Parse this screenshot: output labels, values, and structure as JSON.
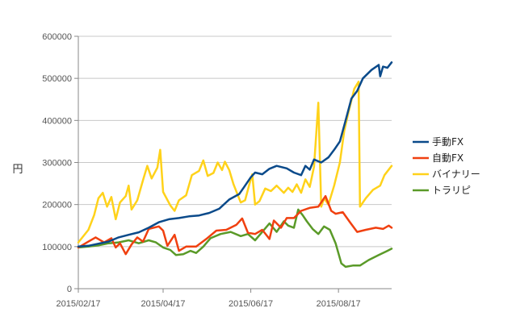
{
  "chart_data": {
    "type": "line",
    "title": "",
    "xlabel": "",
    "ylabel": "円",
    "ylim": [
      0,
      600000
    ],
    "yticks": [
      "0",
      "100000",
      "200000",
      "300000",
      "400000",
      "500000",
      "600000"
    ],
    "xlim": [
      "2015-02-17",
      "2015-09-23"
    ],
    "xticks": [
      {
        "date": "2015-02-17",
        "label": "2015/02/17"
      },
      {
        "date": "2015-04-17",
        "label": "2015/04/17"
      },
      {
        "date": "2015-06-17",
        "label": "2015/06/17"
      },
      {
        "date": "2015-08-17",
        "label": "2015/08/17"
      }
    ],
    "grid": "horizontal",
    "legend_position": "right",
    "series": [
      {
        "name": "手動FX",
        "color": "#0a4a8a",
        "points": [
          [
            "2015-02-17",
            100000
          ],
          [
            "2015-02-24",
            102000
          ],
          [
            "2015-03-03",
            107000
          ],
          [
            "2015-03-10",
            112000
          ],
          [
            "2015-03-17",
            122000
          ],
          [
            "2015-03-24",
            128000
          ],
          [
            "2015-03-31",
            134000
          ],
          [
            "2015-04-07",
            145000
          ],
          [
            "2015-04-14",
            158000
          ],
          [
            "2015-04-21",
            165000
          ],
          [
            "2015-04-28",
            168000
          ],
          [
            "2015-05-05",
            172000
          ],
          [
            "2015-05-12",
            174000
          ],
          [
            "2015-05-19",
            180000
          ],
          [
            "2015-05-26",
            190000
          ],
          [
            "2015-06-02",
            212000
          ],
          [
            "2015-06-09",
            225000
          ],
          [
            "2015-06-12",
            240000
          ],
          [
            "2015-06-17",
            265000
          ],
          [
            "2015-06-20",
            276000
          ],
          [
            "2015-06-25",
            272000
          ],
          [
            "2015-06-30",
            285000
          ],
          [
            "2015-07-05",
            292000
          ],
          [
            "2015-07-12",
            286000
          ],
          [
            "2015-07-17",
            276000
          ],
          [
            "2015-07-22",
            270000
          ],
          [
            "2015-07-25",
            292000
          ],
          [
            "2015-07-28",
            283000
          ],
          [
            "2015-07-31",
            307000
          ],
          [
            "2015-08-05",
            300000
          ],
          [
            "2015-08-10",
            312000
          ],
          [
            "2015-08-14",
            330000
          ],
          [
            "2015-08-18",
            350000
          ],
          [
            "2015-08-22",
            400000
          ],
          [
            "2015-08-26",
            452000
          ],
          [
            "2015-08-30",
            470000
          ],
          [
            "2015-09-03",
            500000
          ],
          [
            "2015-09-09",
            520000
          ],
          [
            "2015-09-14",
            532000
          ],
          [
            "2015-09-15",
            505000
          ],
          [
            "2015-09-17",
            528000
          ],
          [
            "2015-09-20",
            525000
          ],
          [
            "2015-09-23",
            538000
          ]
        ]
      },
      {
        "name": "自動FX",
        "color": "#f04010",
        "points": [
          [
            "2015-02-17",
            98000
          ],
          [
            "2015-02-24",
            112000
          ],
          [
            "2015-03-01",
            122000
          ],
          [
            "2015-03-07",
            110000
          ],
          [
            "2015-03-12",
            120000
          ],
          [
            "2015-03-15",
            98000
          ],
          [
            "2015-03-18",
            108000
          ],
          [
            "2015-03-22",
            82000
          ],
          [
            "2015-03-26",
            105000
          ],
          [
            "2015-03-30",
            122000
          ],
          [
            "2015-04-03",
            112000
          ],
          [
            "2015-04-07",
            142000
          ],
          [
            "2015-04-14",
            148000
          ],
          [
            "2015-04-17",
            138000
          ],
          [
            "2015-04-20",
            102000
          ],
          [
            "2015-04-25",
            128000
          ],
          [
            "2015-04-28",
            90000
          ],
          [
            "2015-05-03",
            100000
          ],
          [
            "2015-05-10",
            100000
          ],
          [
            "2015-05-17",
            118000
          ],
          [
            "2015-05-24",
            138000
          ],
          [
            "2015-05-31",
            140000
          ],
          [
            "2015-06-07",
            152000
          ],
          [
            "2015-06-11",
            167000
          ],
          [
            "2015-06-15",
            133000
          ],
          [
            "2015-06-20",
            130000
          ],
          [
            "2015-06-25",
            140000
          ],
          [
            "2015-06-30",
            118000
          ],
          [
            "2015-07-03",
            162000
          ],
          [
            "2015-07-08",
            145000
          ],
          [
            "2015-07-12",
            168000
          ],
          [
            "2015-07-17",
            168000
          ],
          [
            "2015-07-22",
            185000
          ],
          [
            "2015-07-28",
            192000
          ],
          [
            "2015-08-03",
            195000
          ],
          [
            "2015-08-08",
            220000
          ],
          [
            "2015-08-12",
            185000
          ],
          [
            "2015-08-15",
            178000
          ],
          [
            "2015-08-20",
            182000
          ],
          [
            "2015-08-25",
            158000
          ],
          [
            "2015-08-30",
            135000
          ],
          [
            "2015-09-05",
            140000
          ],
          [
            "2015-09-12",
            145000
          ],
          [
            "2015-09-17",
            142000
          ],
          [
            "2015-09-21",
            150000
          ],
          [
            "2015-09-23",
            145000
          ]
        ]
      },
      {
        "name": "バイナリー",
        "color": "#ffd21a",
        "points": [
          [
            "2015-02-17",
            110000
          ],
          [
            "2015-02-24",
            140000
          ],
          [
            "2015-02-28",
            175000
          ],
          [
            "2015-03-03",
            215000
          ],
          [
            "2015-03-06",
            228000
          ],
          [
            "2015-03-09",
            195000
          ],
          [
            "2015-03-12",
            218000
          ],
          [
            "2015-03-15",
            165000
          ],
          [
            "2015-03-18",
            205000
          ],
          [
            "2015-03-22",
            220000
          ],
          [
            "2015-03-24",
            245000
          ],
          [
            "2015-03-26",
            188000
          ],
          [
            "2015-03-30",
            210000
          ],
          [
            "2015-04-03",
            258000
          ],
          [
            "2015-04-06",
            292000
          ],
          [
            "2015-04-09",
            262000
          ],
          [
            "2015-04-13",
            288000
          ],
          [
            "2015-04-15",
            330000
          ],
          [
            "2015-04-17",
            230000
          ],
          [
            "2015-04-22",
            198000
          ],
          [
            "2015-04-25",
            185000
          ],
          [
            "2015-04-28",
            210000
          ],
          [
            "2015-05-03",
            222000
          ],
          [
            "2015-05-07",
            270000
          ],
          [
            "2015-05-12",
            280000
          ],
          [
            "2015-05-15",
            305000
          ],
          [
            "2015-05-18",
            268000
          ],
          [
            "2015-05-22",
            275000
          ],
          [
            "2015-05-25",
            300000
          ],
          [
            "2015-05-28",
            282000
          ],
          [
            "2015-05-30",
            302000
          ],
          [
            "2015-06-02",
            282000
          ],
          [
            "2015-06-05",
            248000
          ],
          [
            "2015-06-10",
            205000
          ],
          [
            "2015-06-13",
            210000
          ],
          [
            "2015-06-16",
            248000
          ],
          [
            "2015-06-18",
            272000
          ],
          [
            "2015-06-20",
            200000
          ],
          [
            "2015-06-23",
            208000
          ],
          [
            "2015-06-27",
            238000
          ],
          [
            "2015-07-01",
            232000
          ],
          [
            "2015-07-05",
            245000
          ],
          [
            "2015-07-10",
            228000
          ],
          [
            "2015-07-13",
            240000
          ],
          [
            "2015-07-16",
            230000
          ],
          [
            "2015-07-19",
            248000
          ],
          [
            "2015-07-22",
            228000
          ],
          [
            "2015-07-25",
            260000
          ],
          [
            "2015-07-28",
            242000
          ],
          [
            "2015-07-31",
            290000
          ],
          [
            "2015-08-03",
            442000
          ],
          [
            "2015-08-05",
            195000
          ],
          [
            "2015-08-07",
            215000
          ],
          [
            "2015-08-10",
            200000
          ],
          [
            "2015-08-14",
            245000
          ],
          [
            "2015-08-18",
            300000
          ],
          [
            "2015-08-21",
            375000
          ],
          [
            "2015-08-24",
            420000
          ],
          [
            "2015-08-28",
            475000
          ],
          [
            "2015-08-31",
            492000
          ],
          [
            "2015-09-01",
            195000
          ],
          [
            "2015-09-05",
            215000
          ],
          [
            "2015-09-10",
            235000
          ],
          [
            "2015-09-15",
            245000
          ],
          [
            "2015-09-18",
            270000
          ],
          [
            "2015-09-23",
            292000
          ]
        ]
      },
      {
        "name": "トラリピ",
        "color": "#5a9a28",
        "points": [
          [
            "2015-02-17",
            98000
          ],
          [
            "2015-02-24",
            100000
          ],
          [
            "2015-03-03",
            103000
          ],
          [
            "2015-03-10",
            108000
          ],
          [
            "2015-03-17",
            110000
          ],
          [
            "2015-03-24",
            115000
          ],
          [
            "2015-03-31",
            108000
          ],
          [
            "2015-04-07",
            115000
          ],
          [
            "2015-04-12",
            110000
          ],
          [
            "2015-04-17",
            98000
          ],
          [
            "2015-04-22",
            92000
          ],
          [
            "2015-04-26",
            80000
          ],
          [
            "2015-05-01",
            82000
          ],
          [
            "2015-05-06",
            90000
          ],
          [
            "2015-05-10",
            85000
          ],
          [
            "2015-05-15",
            100000
          ],
          [
            "2015-05-20",
            120000
          ],
          [
            "2015-05-27",
            130000
          ],
          [
            "2015-06-03",
            135000
          ],
          [
            "2015-06-10",
            125000
          ],
          [
            "2015-06-15",
            130000
          ],
          [
            "2015-06-20",
            115000
          ],
          [
            "2015-06-25",
            135000
          ],
          [
            "2015-06-30",
            155000
          ],
          [
            "2015-07-05",
            135000
          ],
          [
            "2015-07-10",
            160000
          ],
          [
            "2015-07-13",
            150000
          ],
          [
            "2015-07-17",
            145000
          ],
          [
            "2015-07-20",
            188000
          ],
          [
            "2015-07-23",
            175000
          ],
          [
            "2015-07-26",
            160000
          ],
          [
            "2015-07-30",
            142000
          ],
          [
            "2015-08-03",
            130000
          ],
          [
            "2015-08-07",
            148000
          ],
          [
            "2015-08-11",
            140000
          ],
          [
            "2015-08-15",
            108000
          ],
          [
            "2015-08-19",
            60000
          ],
          [
            "2015-08-22",
            52000
          ],
          [
            "2015-08-27",
            55000
          ],
          [
            "2015-09-01",
            55000
          ],
          [
            "2015-09-07",
            68000
          ],
          [
            "2015-09-14",
            80000
          ],
          [
            "2015-09-20",
            90000
          ],
          [
            "2015-09-23",
            95000
          ]
        ]
      }
    ]
  }
}
